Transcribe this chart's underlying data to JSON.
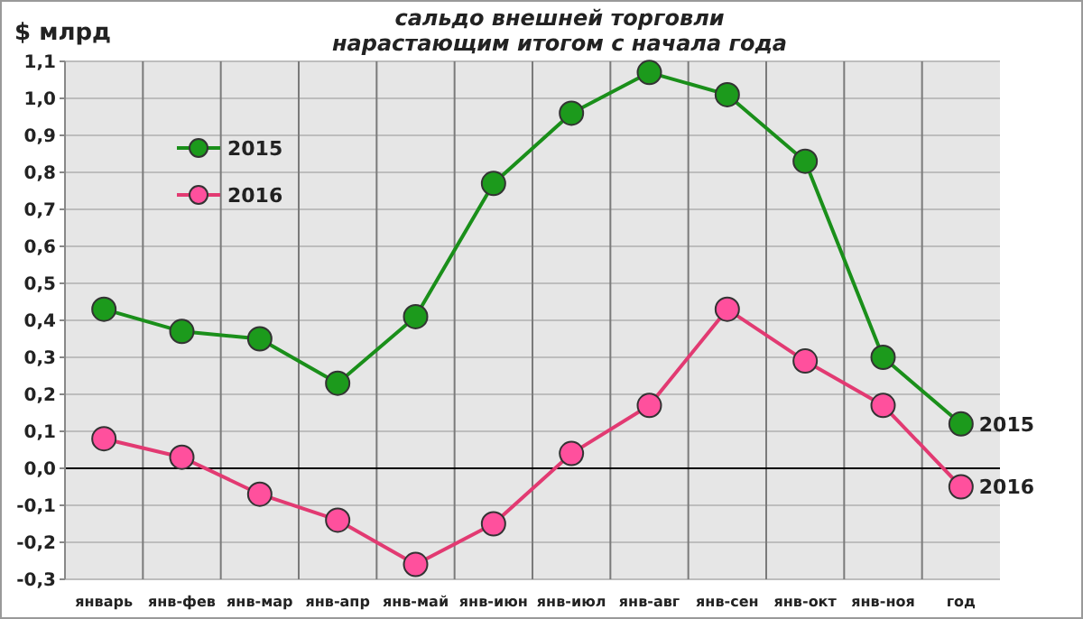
{
  "chart_data": {
    "type": "line",
    "title": "сальдо внешней торговли\nнарастающим итогом с начала года",
    "ylabel": "$ млрд",
    "categories": [
      "январь",
      "янв-фев",
      "янв-мар",
      "янв-апр",
      "янв-май",
      "янв-июн",
      "янв-июл",
      "янв-авг",
      "янв-сен",
      "янв-окт",
      "янв-ноя",
      "год"
    ],
    "series": [
      {
        "name": "2015",
        "color": "#1a8f1a",
        "values": [
          0.43,
          0.37,
          0.35,
          0.23,
          0.41,
          0.77,
          0.96,
          1.07,
          1.01,
          0.83,
          0.3,
          0.12
        ]
      },
      {
        "name": "2016",
        "color": "#e23a72",
        "values": [
          0.08,
          0.03,
          -0.07,
          -0.14,
          -0.26,
          -0.15,
          0.04,
          0.17,
          0.43,
          0.29,
          0.17,
          -0.05
        ]
      }
    ],
    "ylim": [
      -0.3,
      1.1
    ],
    "yticks": [
      {
        "value": -0.3,
        "label": "-0,3"
      },
      {
        "value": -0.2,
        "label": "-0,2"
      },
      {
        "value": -0.1,
        "label": "-0,1"
      },
      {
        "value": 0,
        "label": "0,0"
      },
      {
        "value": 0.1,
        "label": "0,1"
      },
      {
        "value": 0.2,
        "label": "0,2"
      },
      {
        "value": 0.3,
        "label": "0,3"
      },
      {
        "value": 0.4,
        "label": "0,4"
      },
      {
        "value": 0.5,
        "label": "0,5"
      },
      {
        "value": 0.6,
        "label": "0,6"
      },
      {
        "value": 0.7,
        "label": "0,7"
      },
      {
        "value": 0.8,
        "label": "0,8"
      },
      {
        "value": 0.9,
        "label": "0,9"
      },
      {
        "value": 1.0,
        "label": "1,0"
      },
      {
        "value": 1.1,
        "label": "1,1"
      }
    ],
    "grid": true,
    "legend": "top left",
    "marker": "circle",
    "line_style": "solid"
  }
}
